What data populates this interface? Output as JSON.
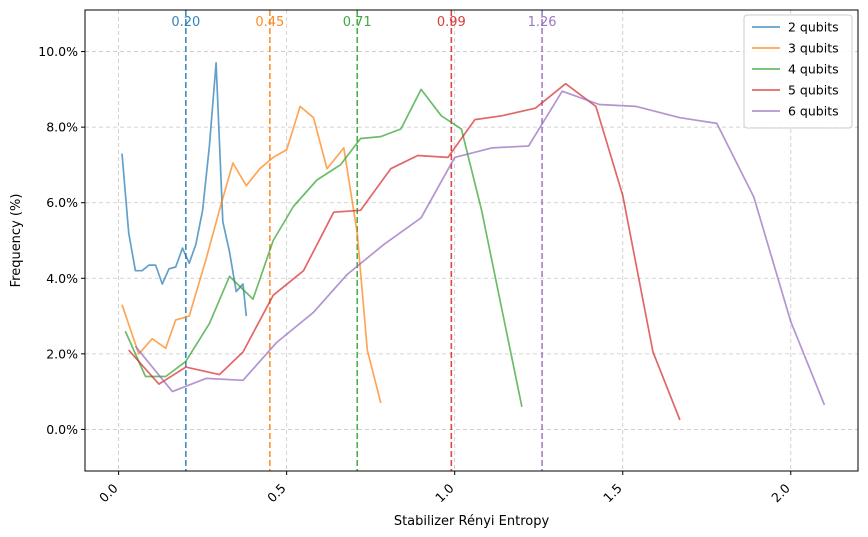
{
  "chart_data": {
    "type": "line",
    "title": "",
    "xlabel": "Stabilizer Rényi Entropy",
    "ylabel": "Frequency (%)",
    "xlim": [
      -0.1,
      2.2
    ],
    "ylim": [
      -1.1,
      11.1
    ],
    "xticks": [
      0.0,
      0.5,
      1.0,
      1.5,
      2.0
    ],
    "xtick_labels": [
      "0.0",
      "0.5",
      "1.0",
      "1.5",
      "2.0"
    ],
    "yticks": [
      0,
      2,
      4,
      6,
      8,
      10
    ],
    "ytick_labels": [
      "0.0%",
      "2.0%",
      "4.0%",
      "6.0%",
      "8.0%",
      "10.0%"
    ],
    "grid": true,
    "legend_position": "top-right",
    "series": [
      {
        "name": "2 qubits",
        "color": "#1f77b4",
        "mean": 0.2,
        "mean_label": "0.20",
        "x": [
          0.01,
          0.03,
          0.05,
          0.07,
          0.09,
          0.11,
          0.13,
          0.15,
          0.17,
          0.19,
          0.21,
          0.23,
          0.25,
          0.27,
          0.29,
          0.31,
          0.33,
          0.35,
          0.37,
          0.38
        ],
        "y": [
          7.3,
          5.2,
          4.2,
          4.2,
          4.35,
          4.35,
          3.85,
          4.25,
          4.3,
          4.8,
          4.4,
          4.9,
          5.8,
          7.5,
          9.7,
          5.5,
          4.7,
          3.65,
          3.85,
          3.0
        ]
      },
      {
        "name": "3 qubits",
        "color": "#ff7f0e",
        "mean": 0.45,
        "mean_label": "0.45",
        "x": [
          0.01,
          0.06,
          0.1,
          0.14,
          0.17,
          0.21,
          0.26,
          0.3,
          0.34,
          0.38,
          0.42,
          0.46,
          0.5,
          0.54,
          0.58,
          0.62,
          0.67,
          0.71,
          0.74,
          0.78
        ],
        "y": [
          3.3,
          2.0,
          2.4,
          2.15,
          2.9,
          3.0,
          4.5,
          5.8,
          7.05,
          6.45,
          6.9,
          7.2,
          7.4,
          8.55,
          8.25,
          6.9,
          7.45,
          5.2,
          2.1,
          0.7
        ]
      },
      {
        "name": "4 qubits",
        "color": "#2ca02c",
        "mean": 0.71,
        "mean_label": "0.71",
        "x": [
          0.02,
          0.08,
          0.14,
          0.2,
          0.27,
          0.33,
          0.4,
          0.46,
          0.52,
          0.59,
          0.66,
          0.72,
          0.78,
          0.84,
          0.9,
          0.96,
          1.02,
          1.08,
          1.14,
          1.2
        ],
        "y": [
          2.6,
          1.4,
          1.4,
          1.8,
          2.8,
          4.05,
          3.45,
          5.0,
          5.9,
          6.6,
          7.0,
          7.7,
          7.75,
          7.95,
          9.0,
          8.3,
          7.95,
          5.8,
          3.2,
          0.6
        ]
      },
      {
        "name": "5 qubits",
        "color": "#d62728",
        "mean": 0.99,
        "mean_label": "0.99",
        "x": [
          0.03,
          0.12,
          0.2,
          0.3,
          0.37,
          0.46,
          0.55,
          0.64,
          0.72,
          0.81,
          0.89,
          0.98,
          1.06,
          1.14,
          1.24,
          1.33,
          1.42,
          1.5,
          1.59,
          1.67
        ],
        "y": [
          2.1,
          1.2,
          1.65,
          1.45,
          2.05,
          3.55,
          4.2,
          5.75,
          5.8,
          6.9,
          7.25,
          7.2,
          8.2,
          8.3,
          8.5,
          9.15,
          8.55,
          6.2,
          2.05,
          0.25
        ]
      },
      {
        "name": "6 qubits",
        "color": "#9467bd",
        "mean": 1.26,
        "mean_label": "1.26",
        "x": [
          0.05,
          0.16,
          0.26,
          0.37,
          0.47,
          0.58,
          0.68,
          0.79,
          0.9,
          1.0,
          1.11,
          1.22,
          1.32,
          1.43,
          1.54,
          1.67,
          1.78,
          1.89,
          2.0,
          2.1
        ],
        "y": [
          2.2,
          1.0,
          1.35,
          1.3,
          2.3,
          3.1,
          4.1,
          4.9,
          5.6,
          7.2,
          7.45,
          7.5,
          8.95,
          8.6,
          8.55,
          8.25,
          8.1,
          6.15,
          2.85,
          0.65
        ]
      }
    ]
  }
}
